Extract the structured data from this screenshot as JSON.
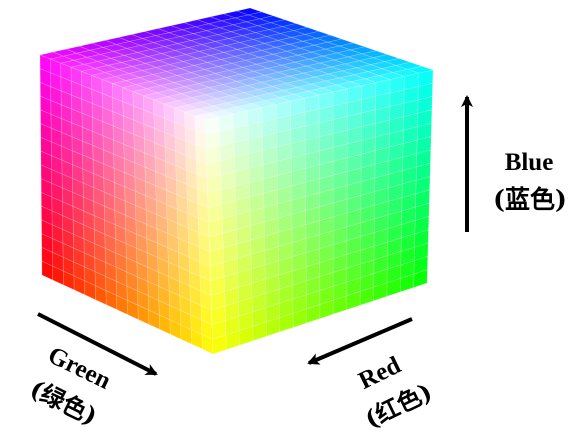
{
  "axes": {
    "blue": {
      "label": "Blue",
      "sub": "(蓝色)",
      "color": "#0000ff"
    },
    "green": {
      "label": "Green",
      "sub": "(绿色)",
      "color": "#00ff00"
    },
    "red": {
      "label": "Red",
      "sub": "(红色)",
      "color": "#ff0000"
    }
  },
  "cube": {
    "grid_divisions": 16,
    "visible_corners": {
      "top": "#0000ff",
      "top_left": "#ff00ff",
      "top_right": "#00ffff",
      "center": "#ffffff",
      "left": "#ff0000",
      "right": "#00ff00",
      "bottom": "#ffff00"
    }
  }
}
